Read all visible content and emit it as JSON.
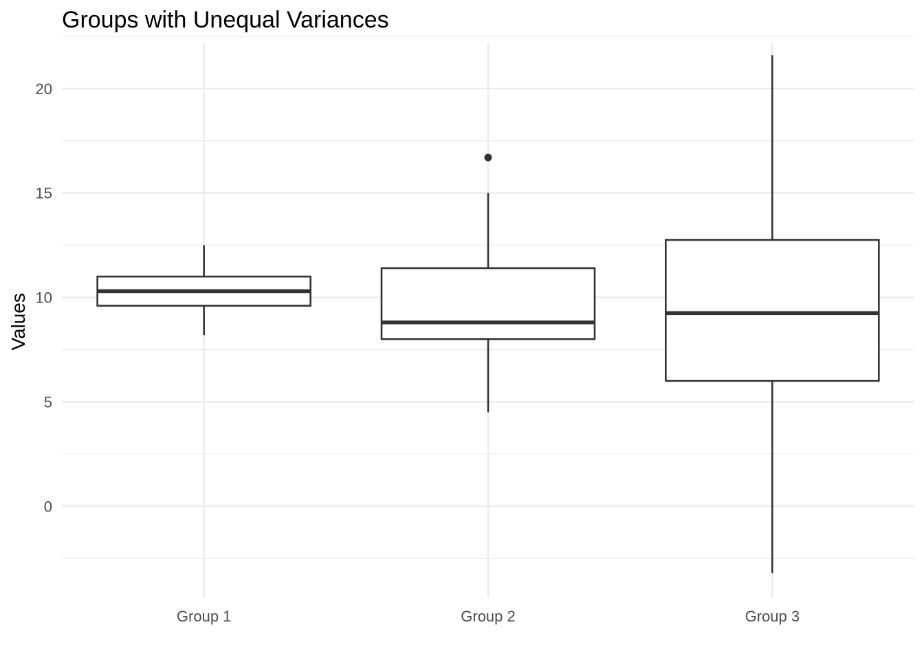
{
  "chart_data": {
    "type": "boxplot",
    "title": "Groups with Unequal Variances",
    "xlabel": "",
    "ylabel": "Values",
    "ylim": [
      -4.4,
      22.2
    ],
    "y_ticks": [
      0,
      5,
      10,
      15,
      20
    ],
    "y_minor_ticks": [
      -2.5,
      2.5,
      7.5,
      12.5,
      17.5,
      22.5
    ],
    "grid": true,
    "categories": [
      "Group 1",
      "Group 2",
      "Group 3"
    ],
    "boxes": [
      {
        "name": "Group 1",
        "whisker_low": 8.2,
        "q1": 9.6,
        "median": 10.3,
        "q3": 11.0,
        "whisker_high": 12.5,
        "outliers": []
      },
      {
        "name": "Group 2",
        "whisker_low": 4.5,
        "q1": 8.0,
        "median": 8.8,
        "q3": 11.4,
        "whisker_high": 15.0,
        "outliers": [
          16.7
        ]
      },
      {
        "name": "Group 3",
        "whisker_low": -3.2,
        "q1": 6.0,
        "median": 9.25,
        "q3": 12.75,
        "whisker_high": 21.6,
        "outliers": []
      }
    ]
  }
}
